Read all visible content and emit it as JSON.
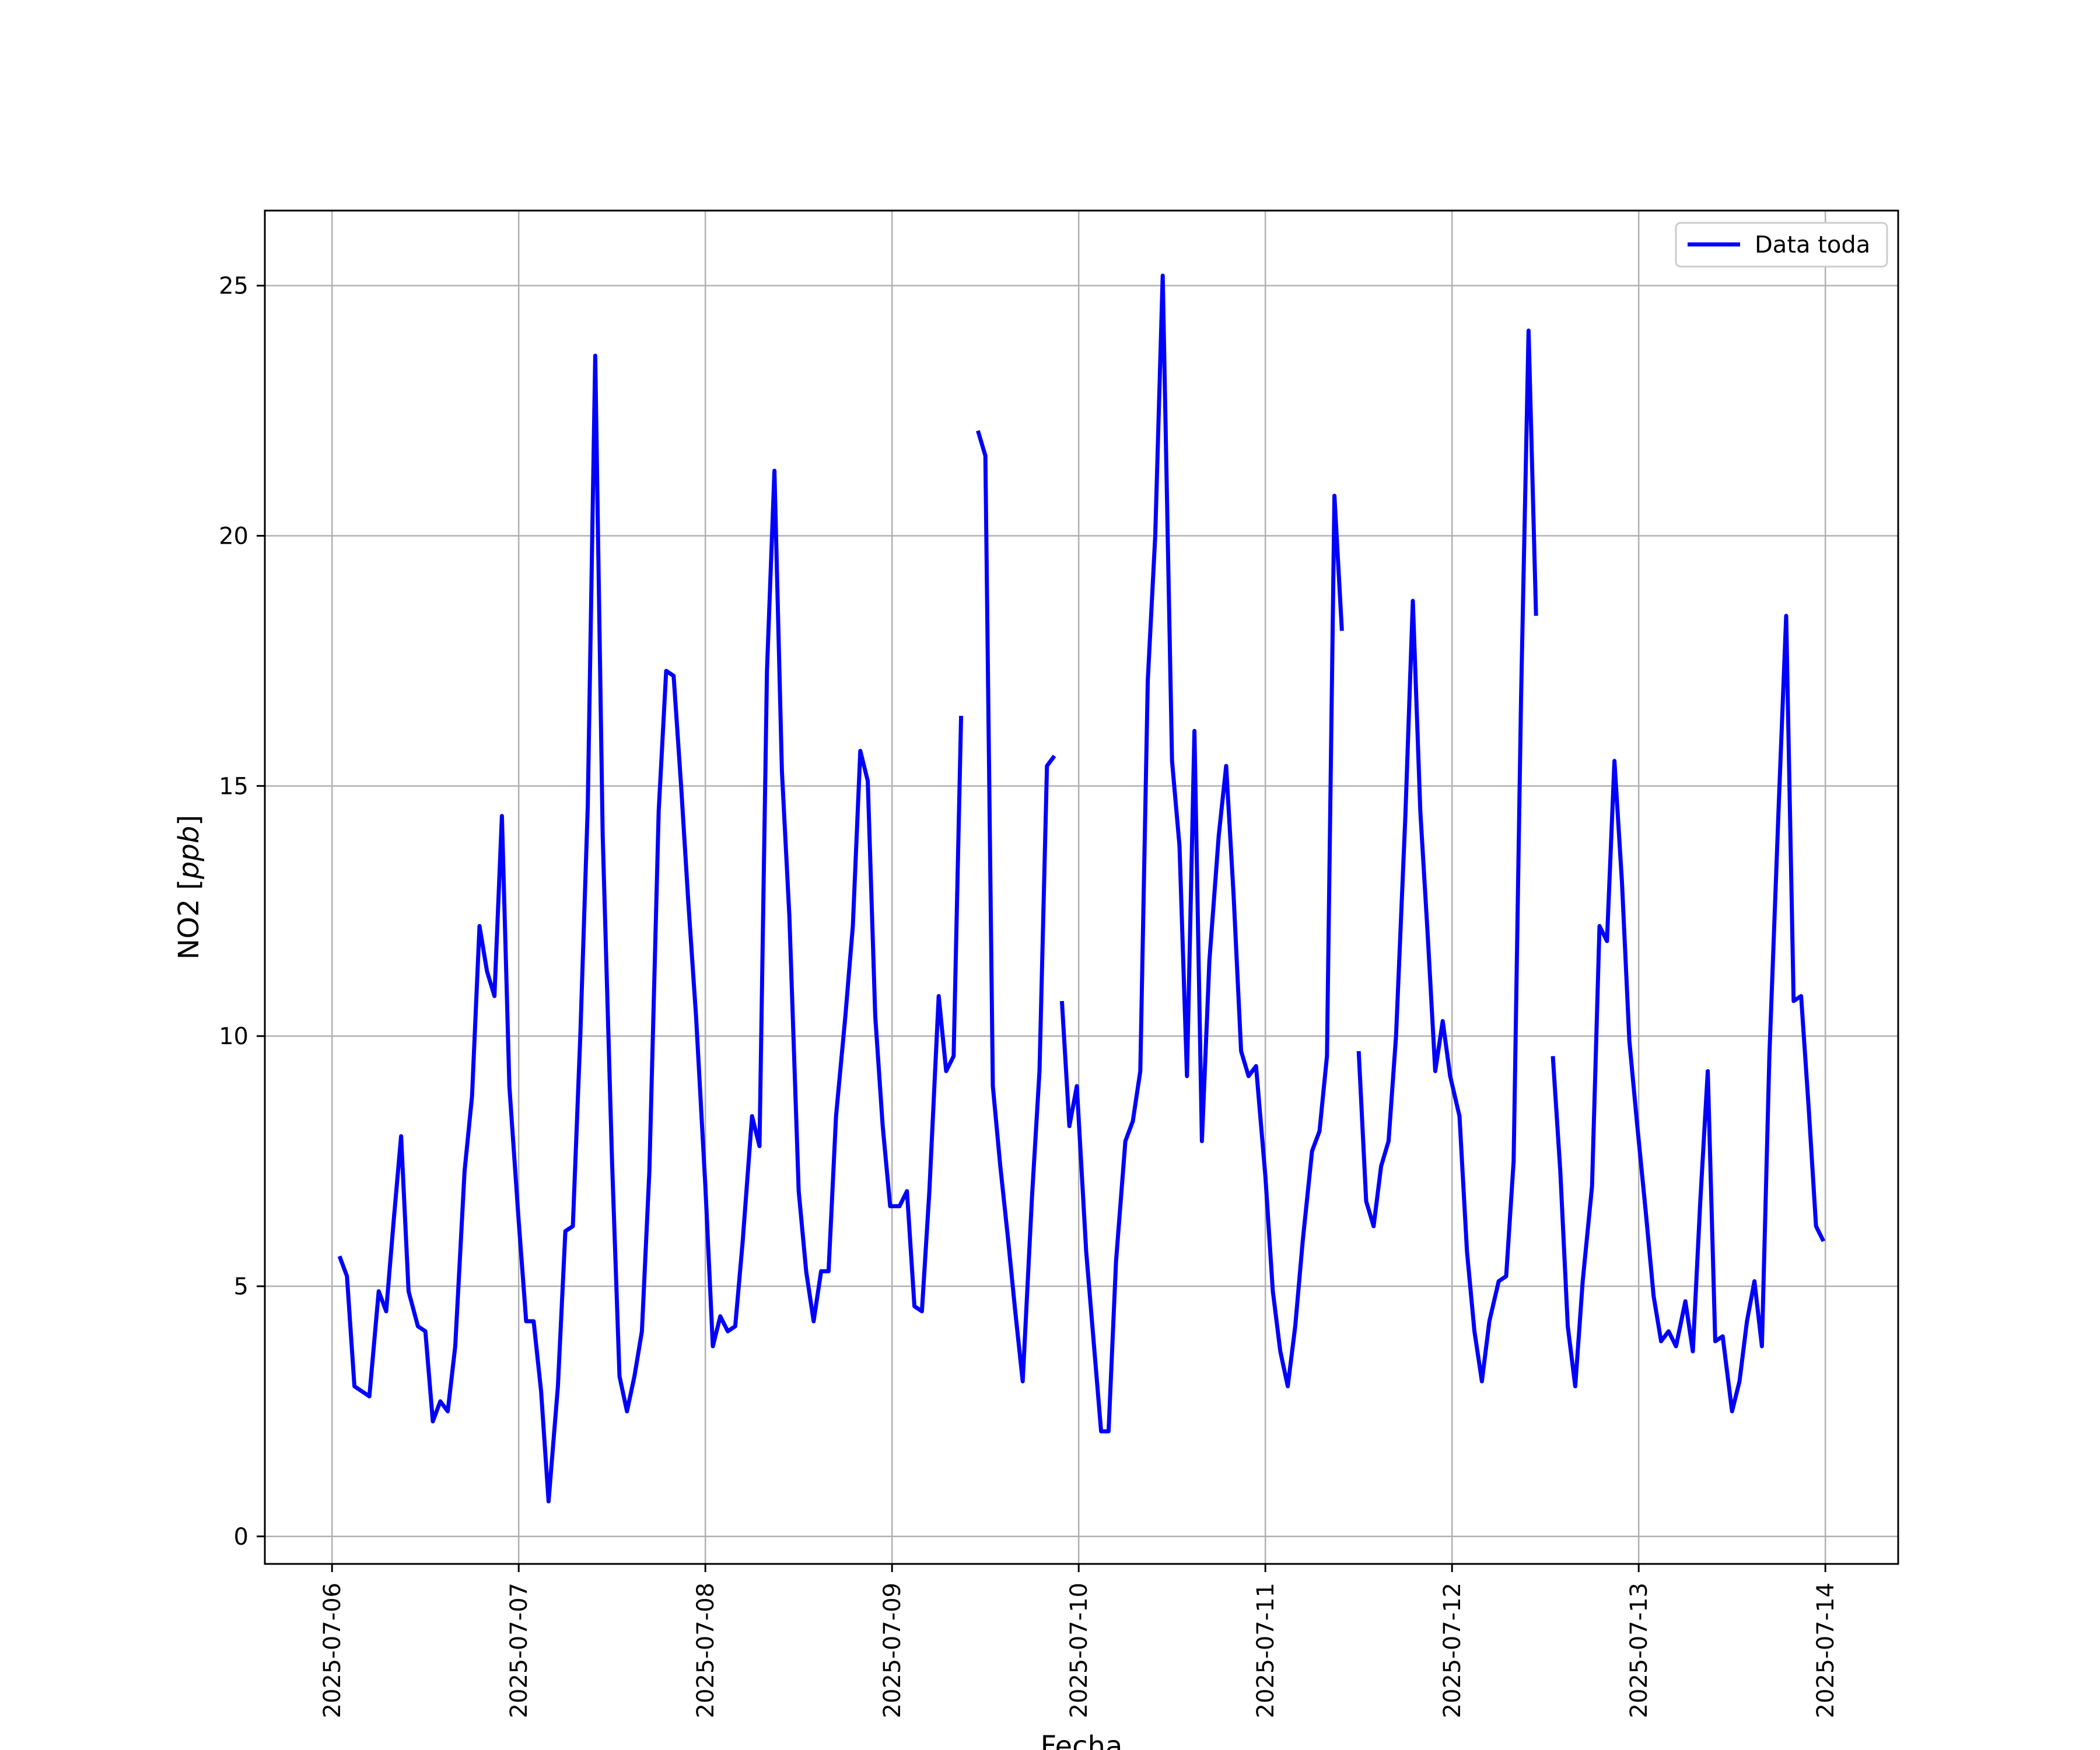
{
  "chart_data": {
    "type": "line",
    "xlabel": "Fecha",
    "ylabel_main": "NO2 [",
    "ylabel_unit": "ppb",
    "ylabel_close": "]",
    "x_ticks": [
      "2025-07-06",
      "2025-07-07",
      "2025-07-08",
      "2025-07-09",
      "2025-07-10",
      "2025-07-11",
      "2025-07-12",
      "2025-07-13",
      "2025-07-14"
    ],
    "y_ticks": [
      0,
      5,
      10,
      15,
      20,
      25
    ],
    "xlim_days": [
      -0.36,
      8.39
    ],
    "ylim": [
      -0.55,
      26.5
    ],
    "grid": true,
    "legend_position": "top-right",
    "series": [
      {
        "name": "Data toda",
        "color": "#0000ff",
        "segments": [
          [
            [
              0.04,
              5.6
            ],
            [
              0.08,
              5.2
            ],
            [
              0.12,
              3.0
            ],
            [
              0.16,
              2.9
            ],
            [
              0.2,
              2.8
            ],
            [
              0.25,
              4.9
            ],
            [
              0.29,
              4.5
            ],
            [
              0.33,
              6.3
            ],
            [
              0.37,
              8.0
            ],
            [
              0.41,
              4.9
            ],
            [
              0.46,
              4.2
            ],
            [
              0.5,
              4.1
            ],
            [
              0.54,
              2.3
            ],
            [
              0.58,
              2.7
            ],
            [
              0.62,
              2.5
            ],
            [
              0.66,
              3.8
            ],
            [
              0.71,
              7.3
            ],
            [
              0.75,
              8.8
            ],
            [
              0.79,
              12.2
            ],
            [
              0.83,
              11.3
            ],
            [
              0.87,
              10.8
            ],
            [
              0.91,
              14.4
            ],
            [
              0.95,
              9.0
            ],
            [
              1.0,
              6.3
            ],
            [
              1.04,
              4.3
            ],
            [
              1.08,
              4.3
            ],
            [
              1.12,
              2.9
            ],
            [
              1.16,
              0.7
            ],
            [
              1.21,
              3.0
            ],
            [
              1.25,
              6.1
            ],
            [
              1.29,
              6.2
            ],
            [
              1.33,
              10.0
            ],
            [
              1.37,
              14.6
            ],
            [
              1.41,
              23.6
            ],
            [
              1.45,
              14.0
            ],
            [
              1.5,
              7.5
            ],
            [
              1.54,
              3.2
            ],
            [
              1.58,
              2.5
            ],
            [
              1.62,
              3.2
            ],
            [
              1.66,
              4.1
            ],
            [
              1.7,
              7.3
            ],
            [
              1.75,
              14.5
            ],
            [
              1.79,
              17.3
            ],
            [
              1.83,
              17.2
            ],
            [
              1.87,
              15.0
            ],
            [
              1.91,
              12.6
            ],
            [
              1.95,
              10.4
            ],
            [
              2.0,
              7.0
            ],
            [
              2.04,
              3.8
            ],
            [
              2.08,
              4.4
            ],
            [
              2.12,
              4.1
            ],
            [
              2.16,
              4.2
            ],
            [
              2.2,
              5.9
            ],
            [
              2.25,
              8.4
            ],
            [
              2.29,
              7.8
            ],
            [
              2.33,
              17.3
            ],
            [
              2.37,
              21.3
            ],
            [
              2.41,
              15.3
            ],
            [
              2.45,
              12.4
            ],
            [
              2.5,
              6.9
            ],
            [
              2.54,
              5.3
            ],
            [
              2.58,
              4.3
            ],
            [
              2.62,
              5.3
            ],
            [
              2.66,
              5.3
            ],
            [
              2.7,
              8.4
            ],
            [
              2.75,
              10.4
            ],
            [
              2.79,
              12.2
            ],
            [
              2.83,
              15.7
            ],
            [
              2.87,
              15.1
            ],
            [
              2.91,
              10.4
            ],
            [
              2.95,
              8.2
            ],
            [
              2.99,
              6.6
            ],
            [
              3.04,
              6.6
            ],
            [
              3.08,
              6.9
            ],
            [
              3.12,
              4.6
            ],
            [
              3.16,
              4.5
            ],
            [
              3.2,
              6.9
            ],
            [
              3.25,
              10.8
            ],
            [
              3.29,
              9.3
            ],
            [
              3.33,
              9.6
            ],
            [
              3.37,
              16.4
            ]
          ],
          [
            [
              3.46,
              22.1
            ],
            [
              3.5,
              21.6
            ],
            [
              3.54,
              9.0
            ],
            [
              3.58,
              7.4
            ],
            [
              3.62,
              6.0
            ],
            [
              3.66,
              4.5
            ],
            [
              3.7,
              3.1
            ],
            [
              3.75,
              6.8
            ],
            [
              3.79,
              9.3
            ],
            [
              3.83,
              15.4
            ],
            [
              3.87,
              15.6
            ]
          ],
          [
            [
              3.91,
              10.7
            ],
            [
              3.95,
              8.2
            ],
            [
              3.99,
              9.0
            ],
            [
              4.04,
              5.7
            ],
            [
              4.08,
              3.9
            ],
            [
              4.12,
              2.1
            ],
            [
              4.16,
              2.1
            ],
            [
              4.2,
              5.5
            ],
            [
              4.25,
              7.9
            ],
            [
              4.29,
              8.3
            ],
            [
              4.33,
              9.3
            ],
            [
              4.37,
              17.1
            ],
            [
              4.41,
              20.0
            ],
            [
              4.45,
              25.2
            ],
            [
              4.5,
              15.5
            ],
            [
              4.54,
              13.8
            ],
            [
              4.58,
              9.2
            ],
            [
              4.62,
              16.1
            ],
            [
              4.66,
              7.9
            ],
            [
              4.7,
              11.5
            ],
            [
              4.75,
              14.0
            ],
            [
              4.79,
              15.4
            ],
            [
              4.83,
              12.8
            ],
            [
              4.87,
              9.7
            ],
            [
              4.91,
              9.2
            ],
            [
              4.95,
              9.4
            ],
            [
              5.0,
              7.2
            ],
            [
              5.04,
              4.9
            ],
            [
              5.08,
              3.7
            ],
            [
              5.12,
              3.0
            ],
            [
              5.16,
              4.2
            ],
            [
              5.2,
              5.9
            ],
            [
              5.25,
              7.7
            ],
            [
              5.29,
              8.1
            ],
            [
              5.33,
              9.6
            ],
            [
              5.37,
              20.8
            ],
            [
              5.41,
              18.1
            ]
          ],
          [
            [
              5.5,
              9.7
            ],
            [
              5.54,
              6.7
            ],
            [
              5.58,
              6.2
            ],
            [
              5.62,
              7.4
            ],
            [
              5.66,
              7.9
            ],
            [
              5.7,
              10.0
            ],
            [
              5.75,
              14.4
            ],
            [
              5.79,
              18.7
            ],
            [
              5.83,
              14.5
            ],
            [
              5.87,
              12.0
            ],
            [
              5.91,
              9.3
            ],
            [
              5.95,
              10.3
            ],
            [
              5.99,
              9.2
            ],
            [
              6.04,
              8.4
            ],
            [
              6.08,
              5.7
            ],
            [
              6.12,
              4.1
            ],
            [
              6.16,
              3.1
            ],
            [
              6.2,
              4.3
            ],
            [
              6.25,
              5.1
            ],
            [
              6.29,
              5.2
            ],
            [
              6.33,
              7.5
            ],
            [
              6.37,
              16.8
            ],
            [
              6.41,
              24.1
            ],
            [
              6.45,
              18.4
            ]
          ],
          [
            [
              6.54,
              9.6
            ],
            [
              6.58,
              7.3
            ],
            [
              6.62,
              4.2
            ],
            [
              6.66,
              3.0
            ],
            [
              6.7,
              5.1
            ],
            [
              6.75,
              7.0
            ],
            [
              6.79,
              12.2
            ],
            [
              6.83,
              11.9
            ],
            [
              6.87,
              15.5
            ],
            [
              6.91,
              13.1
            ],
            [
              6.95,
              9.9
            ],
            [
              6.99,
              8.3
            ],
            [
              7.04,
              6.4
            ],
            [
              7.08,
              4.8
            ],
            [
              7.12,
              3.9
            ],
            [
              7.16,
              4.1
            ],
            [
              7.2,
              3.8
            ],
            [
              7.25,
              4.7
            ],
            [
              7.29,
              3.7
            ],
            [
              7.33,
              6.7
            ],
            [
              7.37,
              9.3
            ],
            [
              7.41,
              3.9
            ],
            [
              7.45,
              4.0
            ],
            [
              7.5,
              2.5
            ],
            [
              7.54,
              3.1
            ],
            [
              7.58,
              4.3
            ],
            [
              7.62,
              5.1
            ],
            [
              7.66,
              3.8
            ],
            [
              7.7,
              9.6
            ],
            [
              7.75,
              14.6
            ],
            [
              7.79,
              18.4
            ],
            [
              7.83,
              10.7
            ],
            [
              7.87,
              10.8
            ],
            [
              7.91,
              8.6
            ],
            [
              7.95,
              6.2
            ],
            [
              7.99,
              5.9
            ]
          ]
        ]
      }
    ]
  }
}
